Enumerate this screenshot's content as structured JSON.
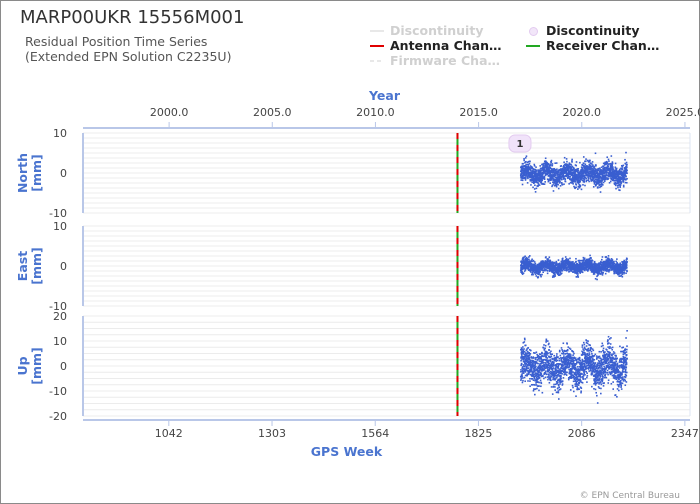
{
  "header": {
    "title": "MARP00UKR 15556M001",
    "subtitle_line1": "Residual Position Time Series",
    "subtitle_line2": "(Extended EPN Solution C2235U)"
  },
  "legend": {
    "items": [
      {
        "label": "Discontinuity",
        "symbol": "line",
        "color": "#e8e8e8",
        "enabled": false
      },
      {
        "label": "Discontinuity",
        "symbol": "dot",
        "color": "#e3cbf0",
        "enabled": true
      },
      {
        "label": "Antenna Chan…",
        "symbol": "line",
        "color": "#e00000",
        "enabled": true
      },
      {
        "label": "Receiver Chan…",
        "symbol": "line",
        "color": "#22a822",
        "enabled": true
      },
      {
        "label": "Firmware Cha…",
        "symbol": "dashed",
        "color": "#e8e8e8",
        "enabled": false
      }
    ]
  },
  "copyright": "© EPN Central Bureau",
  "chart_data": {
    "type": "scatter",
    "top_axis": {
      "label": "Year",
      "ticks": [
        "2000.0",
        "2005.0",
        "2010.0",
        "2015.0",
        "2020.0",
        "2025.0"
      ],
      "tick_values": [
        2000,
        2005,
        2010,
        2015,
        2020,
        2025
      ]
    },
    "bottom_axis": {
      "label": "GPS Week",
      "ticks": [
        "1042",
        "1303",
        "1564",
        "1825",
        "2086",
        "2347"
      ],
      "tick_values": [
        1042,
        1303,
        1564,
        1825,
        2086,
        2347
      ],
      "range": [
        825,
        2360
      ]
    },
    "panels": [
      {
        "name": "North",
        "ylabel": "North\n[mm]",
        "ylim": [
          -10,
          10
        ],
        "ticks": [
          "10",
          "0",
          "-10"
        ],
        "tick_values": [
          10,
          0,
          -10
        ],
        "data_range": [
          1930,
          2199
        ],
        "amplitude": 2.8,
        "seed": 11
      },
      {
        "name": "East",
        "ylabel": "East\n[mm]",
        "ylim": [
          -10,
          10
        ],
        "ticks": [
          "10",
          "0",
          "-10"
        ],
        "tick_values": [
          10,
          0,
          -10
        ],
        "data_range": [
          1930,
          2199
        ],
        "amplitude": 1.8,
        "seed": 23
      },
      {
        "name": "Up",
        "ylabel": "Up\n[mm]",
        "ylim": [
          -20,
          20
        ],
        "ticks": [
          "20",
          "10",
          "0",
          "-10",
          "-20"
        ],
        "tick_values": [
          20,
          10,
          0,
          -10,
          -20
        ],
        "data_range": [
          1930,
          2199
        ],
        "amplitude": 8,
        "seed": 37
      }
    ],
    "events": [
      {
        "type": "antenna_receiver_change",
        "gps_week": 1772
      }
    ],
    "discontinuities": [
      {
        "label": "1",
        "gps_week": 1930
      }
    ],
    "point_color": "#3a5fd0",
    "grid": true
  }
}
